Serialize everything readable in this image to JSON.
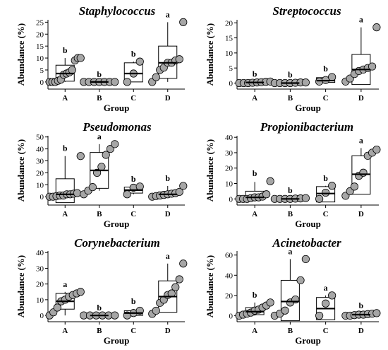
{
  "ylabel": "Abundance (%)",
  "xlabel": "Group",
  "categories": [
    "A",
    "B",
    "C",
    "D"
  ],
  "point_color": "#a6a6a6",
  "chart_data": [
    {
      "type": "box",
      "title": "Staphylococcus",
      "ylim": [
        -3,
        26
      ],
      "yticks": [
        0,
        5,
        10,
        15,
        20,
        25
      ],
      "groups": [
        {
          "name": "A",
          "min": 0,
          "q1": 0.3,
          "median": 3.5,
          "q3": 7,
          "max": 10,
          "sig": "b",
          "points": [
            0,
            0,
            0,
            0.5,
            1,
            3,
            3.5,
            4,
            5,
            9,
            10,
            10
          ]
        },
        {
          "name": "B",
          "min": 0,
          "q1": 0,
          "median": 0,
          "q3": 0,
          "max": 0,
          "sig": "b",
          "points": [
            0,
            0,
            0,
            0,
            0,
            0,
            0
          ]
        },
        {
          "name": "C",
          "min": 0,
          "q1": 0,
          "median": 3.5,
          "q3": 8,
          "max": 8.5,
          "sig": "b",
          "points": [
            0,
            3.5,
            8.5
          ]
        },
        {
          "name": "D",
          "min": 0,
          "q1": 1.5,
          "median": 8,
          "q3": 15,
          "max": 25,
          "sig": "a",
          "points": [
            0,
            2,
            5,
            6,
            8,
            8,
            9,
            9.5,
            25
          ]
        }
      ]
    },
    {
      "type": "box",
      "title": "Streptococcus",
      "ylim": [
        -2,
        21
      ],
      "yticks": [
        0,
        5,
        10,
        15,
        20
      ],
      "groups": [
        {
          "name": "A",
          "min": 0,
          "q1": 0,
          "median": 0.2,
          "q3": 0.4,
          "max": 0.5,
          "sig": "b",
          "points": [
            0,
            0,
            0,
            0.1,
            0.2,
            0.3,
            0.4,
            0.5
          ]
        },
        {
          "name": "B",
          "min": 0,
          "q1": 0,
          "median": 0,
          "q3": 0.1,
          "max": 0.2,
          "sig": "b",
          "points": [
            0,
            0,
            0,
            0,
            0.1,
            0.2,
            0.2
          ]
        },
        {
          "name": "C",
          "min": 0,
          "q1": 0.2,
          "median": 0.8,
          "q3": 1.8,
          "max": 2.2,
          "sig": "b",
          "points": [
            0.5,
            1,
            2
          ]
        },
        {
          "name": "D",
          "min": -0.5,
          "q1": -0.5,
          "median": 4.5,
          "q3": 9.5,
          "max": 18.5,
          "sig": "a",
          "points": [
            0.5,
            1.5,
            3,
            4,
            4.5,
            5,
            5.5,
            18.5
          ]
        }
      ]
    },
    {
      "type": "box",
      "title": "Pseudomonas",
      "ylim": [
        -7,
        51
      ],
      "yticks": [
        0,
        10,
        20,
        30,
        40,
        50
      ],
      "groups": [
        {
          "name": "A",
          "min": -5,
          "q1": -5,
          "median": 2,
          "q3": 15,
          "max": 34,
          "sig": "b",
          "points": [
            0,
            0,
            0.5,
            1,
            1,
            2,
            2,
            2.5,
            3,
            34
          ]
        },
        {
          "name": "B",
          "min": 5,
          "q1": 7,
          "median": 22,
          "q3": 37,
          "max": 44,
          "sig": "a",
          "points": [
            2,
            5,
            8,
            20,
            25,
            35,
            40,
            44
          ]
        },
        {
          "name": "C",
          "min": 2,
          "q1": 3,
          "median": 5.5,
          "q3": 8,
          "max": 8.5,
          "sig": "b",
          "points": [
            2,
            7.5,
            8.5
          ]
        },
        {
          "name": "D",
          "min": 0,
          "q1": 0.5,
          "median": 2,
          "q3": 4,
          "max": 9,
          "sig": "b",
          "points": [
            0,
            0.5,
            1,
            1.5,
            2,
            2.5,
            3,
            4,
            9
          ]
        }
      ]
    },
    {
      "type": "box",
      "title": "Propionibacterium",
      "ylim": [
        -4,
        41
      ],
      "yticks": [
        0,
        10,
        20,
        30,
        40
      ],
      "groups": [
        {
          "name": "A",
          "min": 0,
          "q1": 0,
          "median": 1,
          "q3": 5,
          "max": 11,
          "sig": "b",
          "points": [
            0,
            0,
            0,
            0.5,
            1,
            1,
            1.5,
            3,
            11.5
          ]
        },
        {
          "name": "B",
          "min": 0,
          "q1": 0,
          "median": 0,
          "q3": 0.2,
          "max": 0.5,
          "sig": "b",
          "points": [
            0,
            0,
            0,
            0,
            0.2,
            0.3,
            0.5
          ]
        },
        {
          "name": "C",
          "min": -2,
          "q1": -2,
          "median": 3.5,
          "q3": 8,
          "max": 8.5,
          "sig": "b",
          "points": [
            0,
            4,
            8.5
          ]
        },
        {
          "name": "D",
          "min": 3,
          "q1": 3,
          "median": 16,
          "q3": 28,
          "max": 33,
          "sig": "a",
          "points": [
            2,
            5,
            8,
            15,
            17,
            28,
            30,
            32
          ]
        }
      ]
    },
    {
      "type": "box",
      "title": "Corynebacterium",
      "ylim": [
        -4,
        41
      ],
      "yticks": [
        0,
        10,
        20,
        30,
        40
      ],
      "groups": [
        {
          "name": "A",
          "min": 0,
          "q1": 4,
          "median": 9,
          "q3": 14,
          "max": 15,
          "sig": "a",
          "points": [
            0,
            2,
            5,
            9,
            10,
            12,
            13,
            14,
            15
          ]
        },
        {
          "name": "B",
          "min": 0,
          "q1": 0,
          "median": 0,
          "q3": 0,
          "max": 0,
          "sig": "b",
          "points": [
            0,
            0,
            0,
            0,
            0,
            0
          ]
        },
        {
          "name": "C",
          "min": 0,
          "q1": 0,
          "median": 1.5,
          "q3": 3,
          "max": 4,
          "sig": "b",
          "points": [
            0,
            1.5,
            3
          ]
        },
        {
          "name": "D",
          "min": 2,
          "q1": 2,
          "median": 12,
          "q3": 22,
          "max": 33,
          "sig": "a",
          "points": [
            1,
            3,
            8,
            10,
            13,
            14,
            18,
            23,
            33
          ]
        }
      ]
    },
    {
      "type": "box",
      "title": "Acinetobacter",
      "ylim": [
        -6,
        64
      ],
      "yticks": [
        0,
        20,
        40,
        60
      ],
      "groups": [
        {
          "name": "A",
          "min": 0,
          "q1": 1,
          "median": 4,
          "q3": 8,
          "max": 13,
          "sig": "b",
          "points": [
            0,
            1,
            2,
            3,
            5,
            6,
            8,
            10,
            13
          ]
        },
        {
          "name": "B",
          "min": -5,
          "q1": -5,
          "median": 14,
          "q3": 35,
          "max": 56,
          "sig": "a",
          "points": [
            0,
            2,
            5,
            13,
            16,
            35,
            56
          ]
        },
        {
          "name": "C",
          "min": -4,
          "q1": -4,
          "median": 7,
          "q3": 18,
          "max": 20,
          "sig": "a",
          "points": [
            0,
            12,
            20
          ]
        },
        {
          "name": "D",
          "min": 0,
          "q1": 0,
          "median": 1,
          "q3": 2,
          "max": 2.5,
          "sig": "b",
          "points": [
            0,
            0,
            0.5,
            1,
            1,
            1.5,
            2,
            2.5
          ]
        }
      ]
    }
  ]
}
